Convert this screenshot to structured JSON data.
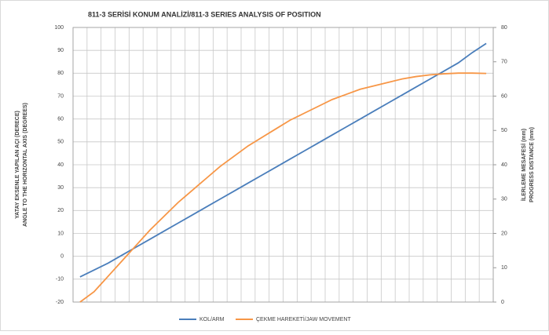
{
  "chart_data": {
    "type": "line",
    "title": "811-3 SERİSİ KONUM ANALİZİ/811-3 SERIES ANALYSIS OF POSITION",
    "ylabel": [
      "YATAY EKSENLE YAPILAN AÇI (DERECE)",
      "ANGLE TO THE HORIZONTAL AXIS (DEGREES)"
    ],
    "y2label": [
      "İLERLEME MESAFESİ (mm)",
      "PROGRESS DISTANCE (mm)"
    ],
    "categories": [
      null,
      null,
      null,
      null,
      null,
      null,
      null,
      null,
      null,
      null,
      null,
      null,
      null,
      null,
      null,
      null,
      null,
      null,
      null,
      null,
      null,
      null,
      null,
      null,
      null,
      null,
      null,
      null,
      null,
      null
    ],
    "ylim": [
      -20,
      100
    ],
    "yticks": [
      -20,
      -10,
      0,
      10,
      20,
      30,
      40,
      50,
      60,
      70,
      80,
      90,
      100
    ],
    "y2lim": [
      0,
      80
    ],
    "y2ticks": [
      0,
      10,
      20,
      30,
      40,
      50,
      60,
      70,
      80
    ],
    "grid": true,
    "legend": "bottom",
    "series": [
      {
        "name": "KOL/ARM",
        "color": "#4a7ebb",
        "values": [
          -9,
          -6,
          -3,
          0.5,
          4,
          7.5,
          11,
          14.5,
          18,
          21.5,
          25,
          28.5,
          32,
          35.5,
          39,
          42.5,
          46,
          49.5,
          53,
          56.5,
          60,
          63.5,
          67,
          70.5,
          74,
          77.5,
          81,
          84.5,
          89,
          93
        ]
      },
      {
        "name": "ÇEKME HAREKETİ/JAW MOVEMENT",
        "color": "#f79646",
        "axis": "y2",
        "values": [
          0,
          3,
          7.5,
          12,
          16.5,
          21,
          25,
          29,
          32.5,
          36,
          39.5,
          42.5,
          45.5,
          48,
          50.5,
          53,
          55,
          57,
          59,
          60.5,
          62,
          63,
          64,
          65,
          65.7,
          66.2,
          66.5,
          66.7,
          66.7,
          66.6
        ]
      }
    ]
  }
}
